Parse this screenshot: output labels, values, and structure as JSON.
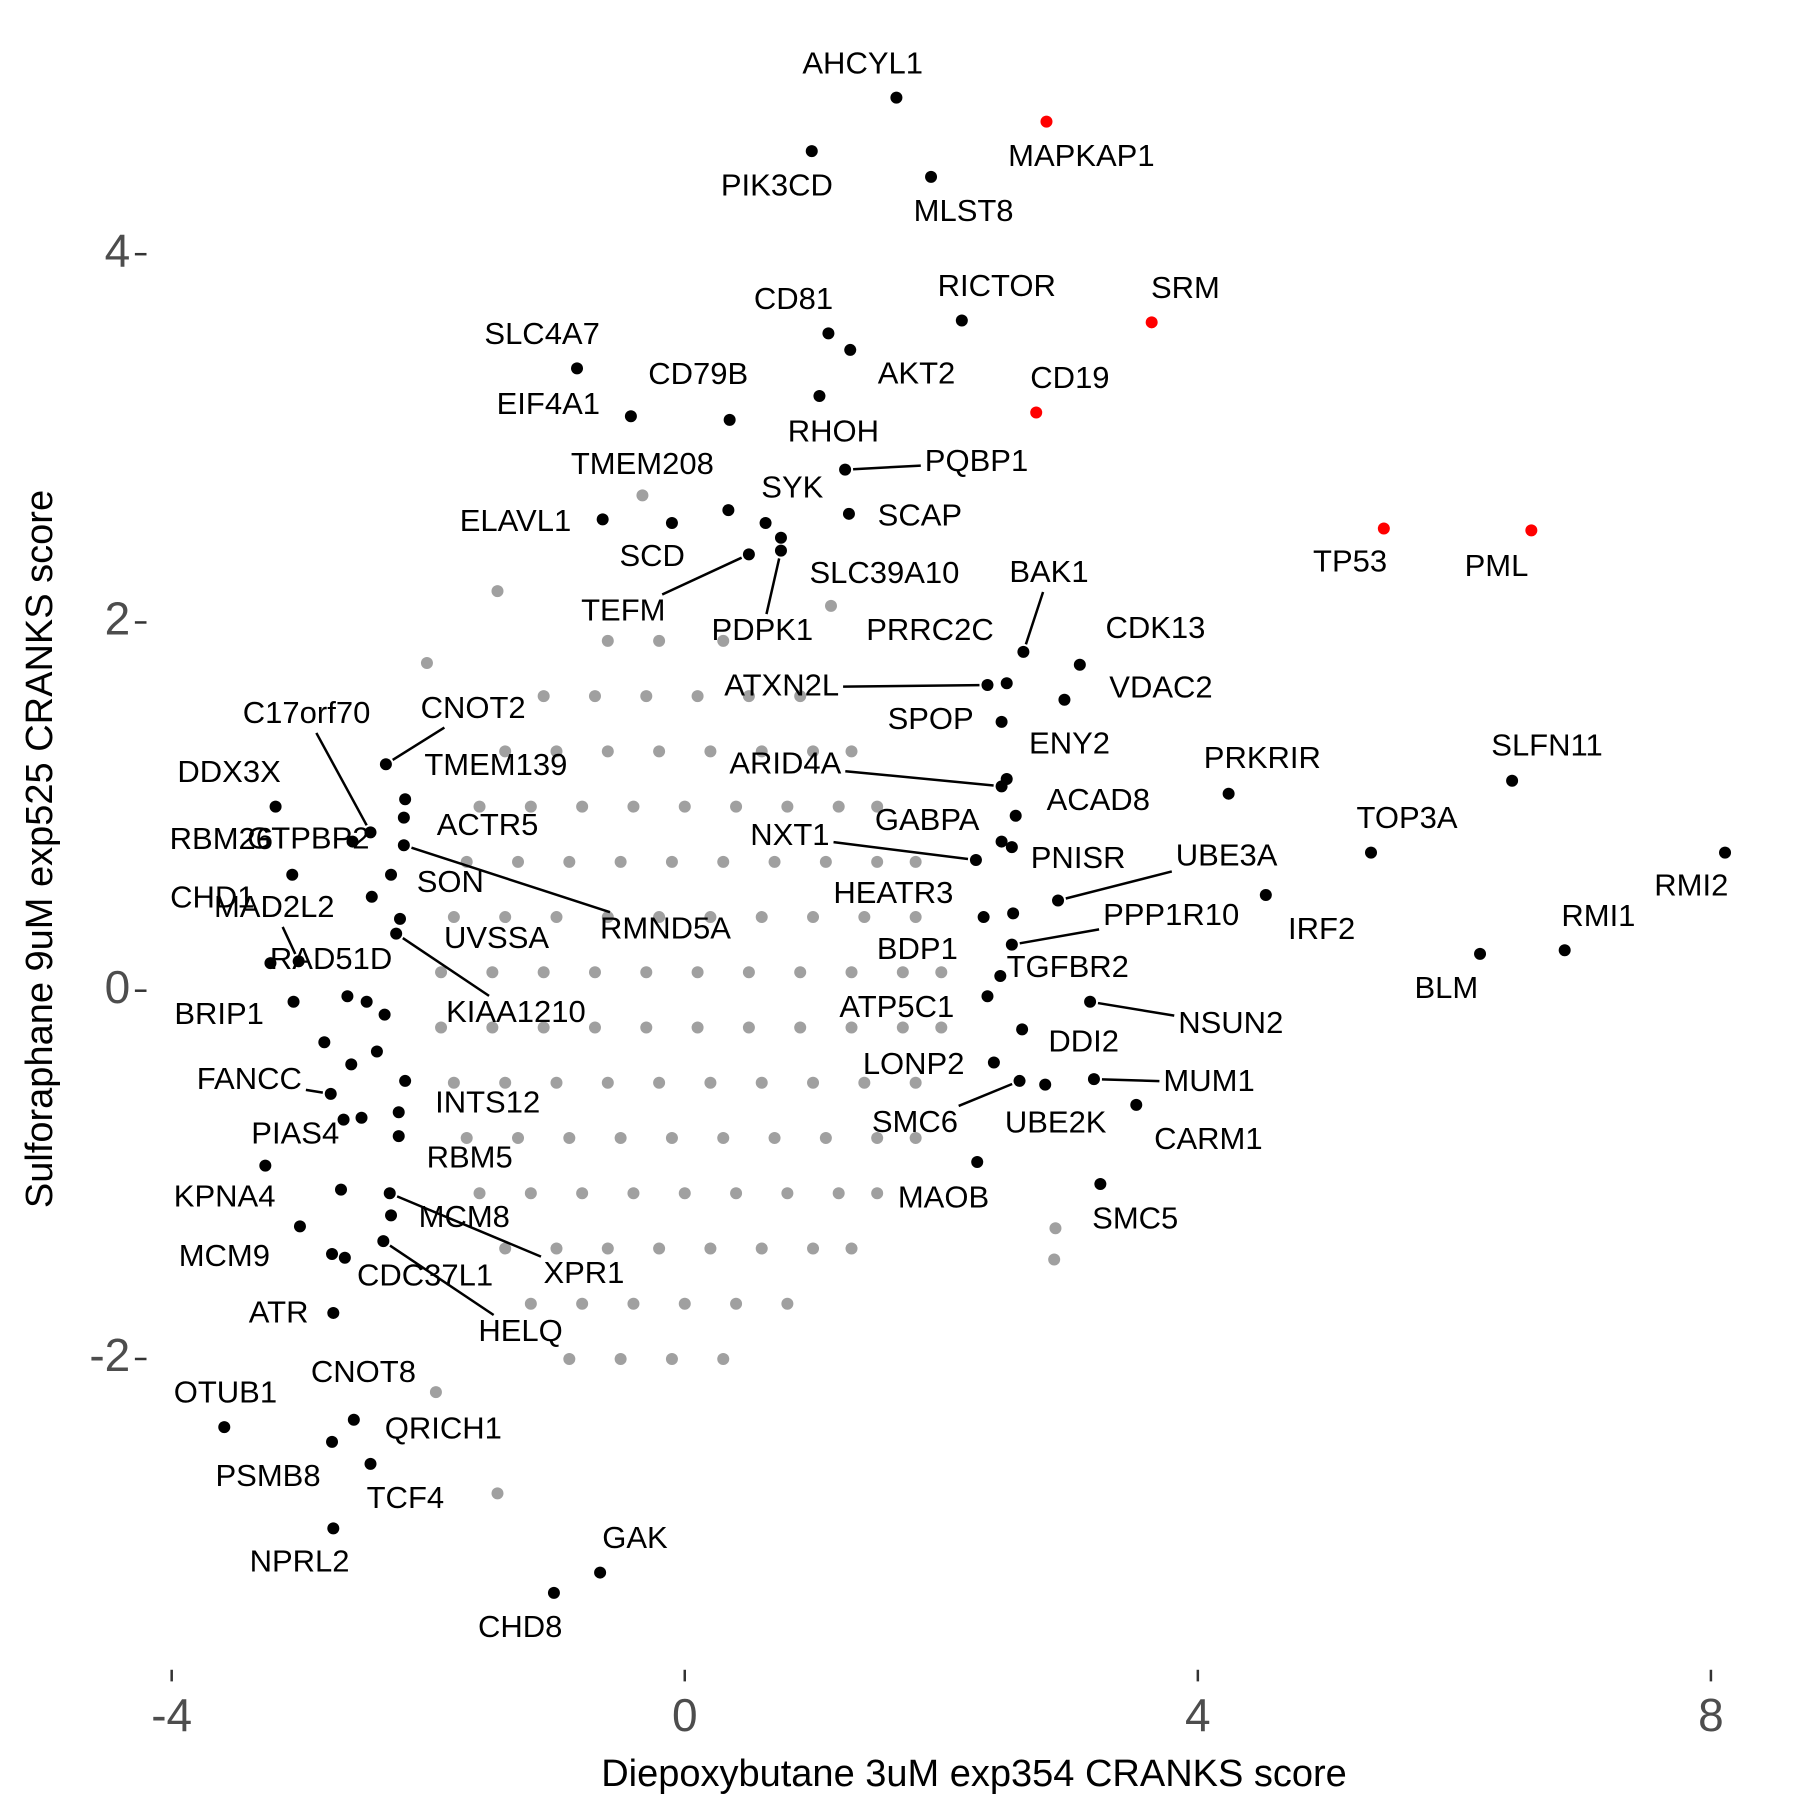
{
  "chart_data": {
    "type": "scatter",
    "xlabel": "Diepoxybutane 3uM exp354 CRANKS score",
    "ylabel": "Sulforaphane 9uM exp525 CRANKS score",
    "xlim": [
      -4.16,
      8.35
    ],
    "ylim": [
      -3.65,
      4.97
    ],
    "xticks": [
      -4,
      0,
      4,
      8
    ],
    "yticks": [
      -2,
      0,
      2,
      4
    ],
    "grid": false,
    "series": [
      {
        "color": "#a0a0a0",
        "x": [
          -0.6,
          -0.2,
          0.3,
          -1.1,
          -0.7,
          -0.3,
          0.1,
          0.5,
          0.9,
          -1.4,
          -1.0,
          -0.6,
          -0.2,
          0.2,
          0.6,
          1.0,
          1.3,
          -1.6,
          -1.2,
          -0.8,
          -0.4,
          0,
          0.4,
          0.8,
          1.2,
          1.5,
          -1.7,
          -1.3,
          -0.9,
          -0.5,
          -0.1,
          0.3,
          0.7,
          1.1,
          1.5,
          1.8,
          -1.8,
          -1.4,
          -1.0,
          -0.6,
          -0.2,
          0.2,
          0.6,
          1.0,
          1.4,
          1.8,
          -1.9,
          -1.5,
          -1.1,
          -0.7,
          -0.3,
          0.1,
          0.5,
          0.9,
          1.3,
          1.7,
          2.0,
          -1.9,
          -1.5,
          -1.1,
          -0.7,
          -0.3,
          0.1,
          0.5,
          0.9,
          1.3,
          1.7,
          2.0,
          -1.8,
          -1.4,
          -1.0,
          -0.6,
          -0.2,
          0.2,
          0.6,
          1.0,
          1.4,
          1.8,
          -1.7,
          -1.3,
          -0.9,
          -0.5,
          -0.1,
          0.3,
          0.7,
          1.1,
          1.5,
          1.8,
          -1.6,
          -1.2,
          -0.8,
          -0.4,
          0,
          0.4,
          0.8,
          1.2,
          1.5,
          -1.4,
          -1.0,
          -0.6,
          -0.2,
          0.2,
          0.6,
          1.0,
          1.3,
          -1.2,
          -0.8,
          -0.4,
          0,
          0.4,
          0.8,
          -0.9,
          -0.5,
          -0.1,
          0.3,
          -0.33,
          -1.46,
          -2.01,
          2.89,
          2.88,
          -1.46,
          -1.94,
          1.14
        ],
        "y": [
          1.9,
          1.9,
          1.9,
          1.6,
          1.6,
          1.6,
          1.6,
          1.6,
          1.6,
          1.3,
          1.3,
          1.3,
          1.3,
          1.3,
          1.3,
          1.3,
          1.3,
          1.0,
          1.0,
          1.0,
          1.0,
          1.0,
          1.0,
          1.0,
          1.0,
          1.0,
          0.7,
          0.7,
          0.7,
          0.7,
          0.7,
          0.7,
          0.7,
          0.7,
          0.7,
          0.7,
          0.4,
          0.4,
          0.4,
          0.4,
          0.4,
          0.4,
          0.4,
          0.4,
          0.4,
          0.4,
          0.1,
          0.1,
          0.1,
          0.1,
          0.1,
          0.1,
          0.1,
          0.1,
          0.1,
          0.1,
          0.1,
          -0.2,
          -0.2,
          -0.2,
          -0.2,
          -0.2,
          -0.2,
          -0.2,
          -0.2,
          -0.2,
          -0.2,
          -0.2,
          -0.5,
          -0.5,
          -0.5,
          -0.5,
          -0.5,
          -0.5,
          -0.5,
          -0.5,
          -0.5,
          -0.5,
          -0.8,
          -0.8,
          -0.8,
          -0.8,
          -0.8,
          -0.8,
          -0.8,
          -0.8,
          -0.8,
          -0.8,
          -1.1,
          -1.1,
          -1.1,
          -1.1,
          -1.1,
          -1.1,
          -1.1,
          -1.1,
          -1.1,
          -1.4,
          -1.4,
          -1.4,
          -1.4,
          -1.4,
          -1.4,
          -1.4,
          -1.4,
          -1.7,
          -1.7,
          -1.7,
          -1.7,
          -1.7,
          -1.7,
          -2.0,
          -2.0,
          -2.0,
          -2.0,
          2.69,
          2.17,
          1.78,
          -1.29,
          -1.46,
          -2.73,
          -2.18,
          2.09
        ]
      },
      {
        "color": "#000000",
        "labels": [
          "AHCYL1",
          "PIK3CD",
          "MLST8",
          "RICTOR",
          "CD81",
          "AKT2",
          "SLC4A7",
          "EIF4A1",
          "CD79B",
          "RHOH",
          "PQBP1",
          "ELAVL1",
          "SCD",
          "TMEM208",
          "SYK",
          "SCAP",
          "TEFM",
          "SLC39A10",
          "PDPK1",
          "BAK1",
          "CDK13",
          "PRRC2C",
          "ATXN2L",
          "VDAC2",
          "SPOP",
          "ENY2",
          "ARID4A",
          "PRKRIR",
          "SLFN11",
          "ACAD8",
          "GABPA",
          "PNISR",
          "TOP3A",
          "RMI2",
          "NXT1",
          "UBE3A",
          "IRF2",
          "HEATR3",
          "BDP1",
          "PPP1R10",
          "RMI1",
          "BLM",
          "TGFBR2",
          "ATP5C1",
          "DDI2",
          "NSUN2",
          "LONP2",
          "SMC6",
          "UBE2K",
          "MUM1",
          "CARM1",
          "MAOB",
          "SMC5",
          "C17orf70",
          "CNOT2",
          "TMEM139",
          "DDX3X",
          "ACTR5",
          "RBM26",
          "GTPBP2",
          "SON",
          "RMND5A",
          "CHD1",
          "MAD2L2",
          "RAD51D",
          "UVSSA",
          "KIAA1210",
          "BRIP1",
          "FANCC",
          "INTS12",
          "PIAS4",
          "RBM5",
          "KPNA4",
          "MCM8",
          "XPR1",
          "MCM9",
          "CDC37L1",
          "HELQ",
          "ATR",
          "CNOT8",
          "OTUB1",
          "QRICH1",
          "PSMB8",
          "TCF4",
          "NPRL2",
          "GAK",
          "CHD8",
          null,
          null,
          null,
          null,
          null,
          null,
          null,
          null,
          null
        ],
        "x": [
          1.65,
          0.99,
          1.92,
          2.16,
          1.12,
          1.29,
          -0.84,
          -0.42,
          0.35,
          1.05,
          1.25,
          -0.64,
          -0.1,
          0.34,
          0.63,
          1.28,
          0.5,
          0.75,
          0.75,
          2.64,
          3.08,
          2.51,
          2.36,
          2.96,
          2.47,
          2.51,
          2.47,
          4.24,
          6.45,
          2.58,
          2.47,
          2.55,
          5.35,
          8.11,
          2.27,
          2.91,
          4.53,
          2.56,
          2.33,
          2.55,
          6.86,
          6.2,
          2.46,
          2.36,
          2.63,
          3.16,
          2.41,
          2.61,
          2.81,
          3.19,
          3.52,
          2.28,
          3.24,
          -2.45,
          -2.33,
          -2.18,
          -3.19,
          -2.19,
          -3.06,
          -2.59,
          -2.29,
          -2.19,
          -3.23,
          -3.01,
          -2.44,
          -2.22,
          -2.25,
          -3.05,
          -2.76,
          -2.18,
          -2.52,
          -2.23,
          -3.27,
          -2.29,
          -2.3,
          -3.0,
          -2.65,
          -2.35,
          -2.74,
          -2.75,
          -3.59,
          -2.58,
          -2.75,
          -2.45,
          -2.74,
          -0.66,
          -1.02,
          -2.63,
          -2.48,
          -2.34,
          -2.81,
          -2.6,
          -2.4,
          -2.66,
          -2.23,
          -2.68
        ],
        "y": [
          4.85,
          4.56,
          4.42,
          3.64,
          3.57,
          3.48,
          3.38,
          3.12,
          3.1,
          3.23,
          2.83,
          2.56,
          2.54,
          2.61,
          2.54,
          2.59,
          2.37,
          2.46,
          2.39,
          1.84,
          1.77,
          1.67,
          1.66,
          1.58,
          1.46,
          1.15,
          1.11,
          1.07,
          1.14,
          0.95,
          0.81,
          0.78,
          0.75,
          0.75,
          0.71,
          0.49,
          0.52,
          0.42,
          0.4,
          0.25,
          0.22,
          0.2,
          0.08,
          -0.03,
          -0.21,
          -0.06,
          -0.39,
          -0.49,
          -0.51,
          -0.48,
          -0.62,
          -0.93,
          -1.05,
          0.86,
          1.23,
          1.04,
          1.0,
          0.94,
          0.63,
          0.81,
          0.63,
          0.79,
          0.15,
          0.16,
          0.51,
          0.39,
          0.31,
          -0.06,
          -0.56,
          -0.49,
          -0.69,
          -0.79,
          -0.95,
          -1.22,
          -1.1,
          -1.28,
          -1.45,
          -1.36,
          -1.75,
          -1.43,
          -2.37,
          -2.33,
          -2.45,
          -2.57,
          -2.92,
          -3.16,
          -3.27,
          -0.03,
          -0.06,
          -0.13,
          -0.28,
          -0.4,
          -0.33,
          -0.7,
          -0.66,
          -1.08
        ]
      },
      {
        "color": "#ff0000",
        "labels": [
          "MAPKAP1",
          "SRM",
          "CD19",
          "TP53",
          "PML"
        ],
        "x": [
          2.82,
          3.64,
          2.74,
          5.45,
          6.6
        ],
        "y": [
          4.72,
          3.63,
          3.14,
          2.51,
          2.5
        ]
      }
    ]
  }
}
